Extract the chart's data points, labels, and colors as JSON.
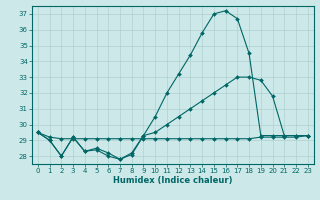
{
  "xlabel": "Humidex (Indice chaleur)",
  "bg_color": "#cde8e8",
  "grid_color": "#b0d0d0",
  "line_color": "#006666",
  "xlim": [
    -0.5,
    23.5
  ],
  "ylim": [
    27.5,
    37.5
  ],
  "yticks": [
    28,
    29,
    30,
    31,
    32,
    33,
    34,
    35,
    36,
    37
  ],
  "xticks": [
    0,
    1,
    2,
    3,
    4,
    5,
    6,
    7,
    8,
    9,
    10,
    11,
    12,
    13,
    14,
    15,
    16,
    17,
    18,
    19,
    20,
    21,
    22,
    23
  ],
  "curve1_x": [
    0,
    1,
    2,
    3,
    4,
    5,
    6,
    7,
    8,
    9,
    10,
    11,
    12,
    13,
    14,
    15,
    16,
    17,
    18,
    19,
    20,
    21,
    22,
    23
  ],
  "curve1_y": [
    29.5,
    29.0,
    28.0,
    29.2,
    28.3,
    28.4,
    28.0,
    27.8,
    28.1,
    29.3,
    30.5,
    32.0,
    33.2,
    34.4,
    35.8,
    37.0,
    37.2,
    36.7,
    34.5,
    29.3,
    29.3,
    29.3,
    29.3,
    29.3
  ],
  "curve2_x": [
    0,
    1,
    2,
    3,
    4,
    5,
    6,
    7,
    8,
    9,
    10,
    11,
    12,
    13,
    14,
    15,
    16,
    17,
    18,
    19,
    20,
    21,
    22,
    23
  ],
  "curve2_y": [
    29.5,
    29.0,
    28.0,
    29.2,
    28.3,
    28.5,
    28.2,
    27.8,
    28.2,
    29.3,
    29.5,
    30.0,
    30.5,
    31.0,
    31.5,
    32.0,
    32.5,
    33.0,
    33.0,
    32.8,
    31.8,
    29.3,
    29.3,
    29.3
  ],
  "curve3_x": [
    0,
    1,
    2,
    3,
    4,
    5,
    6,
    7,
    8,
    9,
    10,
    11,
    12,
    13,
    14,
    15,
    16,
    17,
    18,
    19,
    20,
    21,
    22,
    23
  ],
  "curve3_y": [
    29.5,
    29.2,
    29.1,
    29.1,
    29.1,
    29.1,
    29.1,
    29.1,
    29.1,
    29.1,
    29.1,
    29.1,
    29.1,
    29.1,
    29.1,
    29.1,
    29.1,
    29.1,
    29.1,
    29.2,
    29.2,
    29.2,
    29.2,
    29.3
  ]
}
